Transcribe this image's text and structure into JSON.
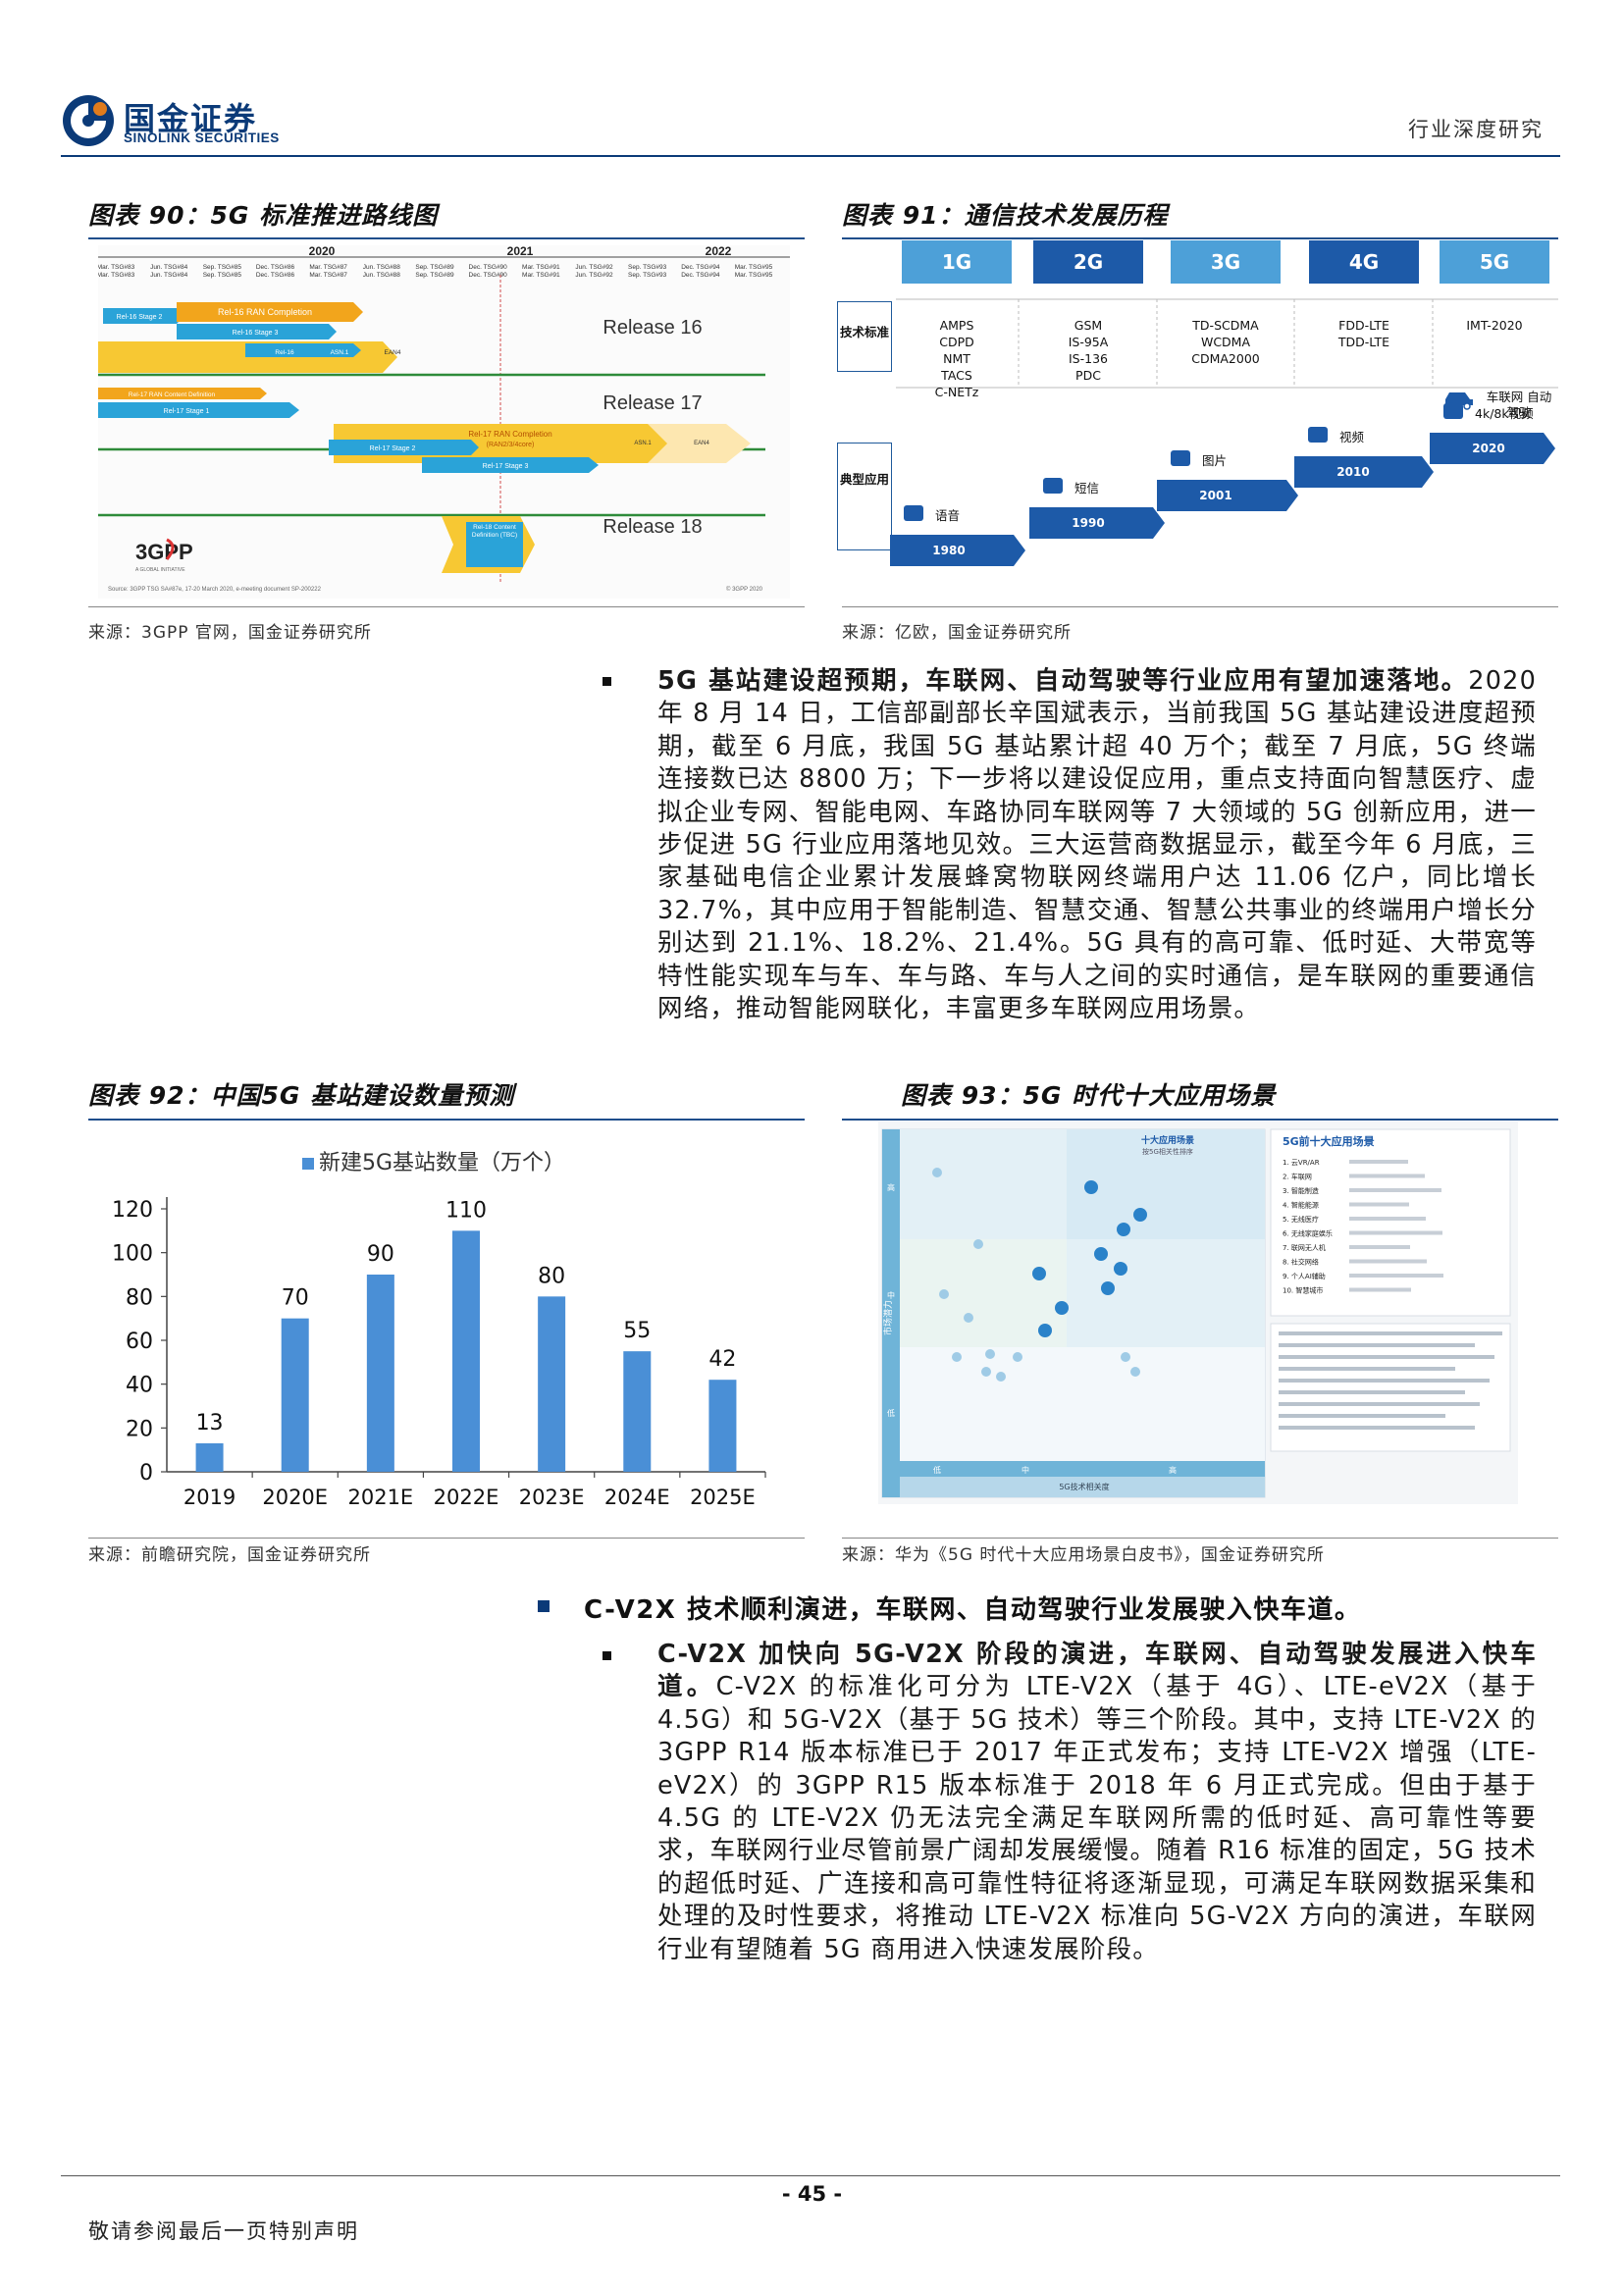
{
  "header": {
    "logo_cn": "国金证券",
    "logo_en": "SINOLINK SECURITIES",
    "report_type": "行业深度研究"
  },
  "fig90": {
    "title": "图表 90：5G 标准推进路线图",
    "source": "来源：3GPP 官网，国金证券研究所",
    "years": [
      "2020",
      "2021",
      "2022"
    ],
    "meetings": [
      "Mar. TSG#83",
      "Jun. TSG#84",
      "Sep. TSG#85",
      "Dec. TSG#86",
      "Mar. TSG#87",
      "Jun. TSG#88",
      "Sep. TSG#89",
      "Dec. TSG#90",
      "Mar. TSG#91",
      "Jun. TSG#92",
      "Sep. TSG#93",
      "Dec. TSG#94",
      "Mar. TSG#95"
    ],
    "releases": [
      "Release 16",
      "Release 17",
      "Release 18"
    ],
    "bars": [
      "Rel-16 Stage 2",
      "Rel-16 RAN Completion",
      "Rel-16 Stage 3",
      "Rel-16",
      "ASN.1",
      "EAN4",
      "Rel-17 RAN Content Definition",
      "Rel-17 Stage 1",
      "Rel-17 RAN Completion",
      "(RAN2/3/4core)",
      "Rel-17 Stage 2",
      "Rel-17 Stage 3",
      "ASN.1",
      "EAN4",
      "Rel-18 Content Definition (TBC)"
    ],
    "logo": "3GPP",
    "logo_sub": "A GLOBAL INITIATIVE",
    "footnote": "Source: 3GPP TSG SA#87e, 17-20 March 2020, e-meeting document SP-200222",
    "copyright": "© 3GPP 2020"
  },
  "fig91": {
    "title": "图表 91：通信技术发展历程",
    "source": "来源：亿欧，国金证券研究所",
    "generations": [
      "1G",
      "2G",
      "3G",
      "4G",
      "5G"
    ],
    "gen_colors": [
      "#4da0d8",
      "#1d5aa8",
      "#4da0d8",
      "#1d5aa8",
      "#4da0d8"
    ],
    "row_tech_label": "技术标准",
    "row_app_label": "典型应用",
    "tech": [
      [
        "AMPS",
        "CDPD",
        "NMT",
        "TACS",
        "C-NETz"
      ],
      [
        "GSM",
        "IS-95A",
        "IS-136",
        "PDC"
      ],
      [
        "TD-SCDMA",
        "WCDMA",
        "CDMA2000"
      ],
      [
        "FDD-LTE",
        "TDD-LTE"
      ],
      [
        "IMT-2020"
      ]
    ],
    "apps": [
      {
        "name": "语音",
        "year": "1980",
        "icon": "microphone-icon"
      },
      {
        "name": "短信",
        "year": "1990",
        "icon": "message-icon"
      },
      {
        "name": "图片",
        "year": "2001",
        "icon": "picture-icon"
      },
      {
        "name": "视频",
        "year": "2010",
        "icon": "video-icon"
      },
      {
        "name": "4k/8k视频",
        "year": "2020",
        "icon": "video-play-icon"
      }
    ],
    "car_app": "车联网 自动驾驶"
  },
  "section1": {
    "lead": "5G 基站建设超预期，车联网、自动驾驶等行业应用有望加速落地。",
    "body": "2020 年 8 月 14 日，工信部副部长辛国斌表示，当前我国 5G 基站建设进度超预期，截至 6 月底，我国 5G 基站累计超 40 万个；截至 7 月底，5G 终端连接数已达 8800 万；下一步将以建设促应用，重点支持面向智慧医疗、虚拟企业专网、智能电网、车路协同车联网等 7 大领域的 5G 创新应用，进一步促进 5G 行业应用落地见效。三大运营商数据显示，截至今年 6 月底，三家基础电信企业累计发展蜂窝物联网终端用户达 11.06 亿户，同比增长 32.7%，其中应用于智能制造、智慧交通、智慧公共事业的终端用户增长分别达到 21.1%、18.2%、21.4%。5G 具有的高可靠、低时延、大带宽等特性能实现车与车、车与路、车与人之间的实时通信，是车联网的重要通信网络，推动智能网联化，丰富更多车联网应用场景。"
  },
  "fig92": {
    "title": "图表 92：中国5G 基站建设数量预测",
    "source": "来源：前瞻研究院，国金证券研究所"
  },
  "chart_data": {
    "type": "bar",
    "legend": "新建5G基站数量（万个）",
    "categories": [
      "2019",
      "2020E",
      "2021E",
      "2022E",
      "2023E",
      "2024E",
      "2025E"
    ],
    "values": [
      13,
      70,
      90,
      110,
      80,
      55,
      42
    ],
    "ylim": [
      0,
      120
    ],
    "yticks": [
      "0",
      "20",
      "40",
      "60",
      "80",
      "100",
      "120"
    ],
    "color": "#4a8fd6",
    "legend_position": "top-center",
    "grid": false
  },
  "fig93": {
    "title": "图表 93：5G 时代十大应用场景",
    "source": "来源：华为《5G 时代十大应用场景白皮书》，国金证券研究所",
    "inner_title": "十大应用场景",
    "inner_subtitle": "按5G相关性排序",
    "list_title": "5G前十大应用场景",
    "top10": [
      "1. 云VR/AR",
      "2. 车联网",
      "3. 智能制造",
      "4. 智能能源",
      "5. 无线医疗",
      "6. 无线家庭娱乐",
      "7. 联网无人机",
      "8. 社交网络",
      "9. 个人AI辅助",
      "10. 智慧城市"
    ],
    "x_axis": "5G技术相关度",
    "y_axis": "市场潜力",
    "x_levels": [
      "低",
      "中",
      "高"
    ],
    "y_levels": [
      "低",
      "中",
      "高"
    ]
  },
  "section2": {
    "heading": "C-V2X 技术顺利演进，车联网、自动驾驶行业发展驶入快车道。",
    "lead": "C-V2X 加快向 5G-V2X 阶段的演进，车联网、自动驾驶发展进入快车道。",
    "body": "C-V2X 的标准化可分为 LTE-V2X（基于 4G）、LTE-eV2X（基于 4.5G）和 5G-V2X（基于 5G 技术）等三个阶段。其中，支持 LTE-V2X 的 3GPP R14 版本标准已于 2017 年正式发布；支持 LTE-V2X 增强（LTE-eV2X）的 3GPP R15 版本标准于 2018 年 6 月正式完成。但由于基于 4.5G 的 LTE-V2X 仍无法完全满足车联网所需的低时延、高可靠性等要求，车联网行业尽管前景广阔却发展缓慢。随着 R16 标准的固定，5G 技术的超低时延、广连接和高可靠性特征将逐渐显现，可满足车联网数据采集和处理的及时性要求，将推动 LTE-V2X 标准向 5G-V2X 方向的演进，车联网行业有望随着 5G 商用进入快速发展阶段。"
  },
  "footer": {
    "page": "- 45 -",
    "disclaimer": "敬请参阅最后一页特别声明"
  }
}
